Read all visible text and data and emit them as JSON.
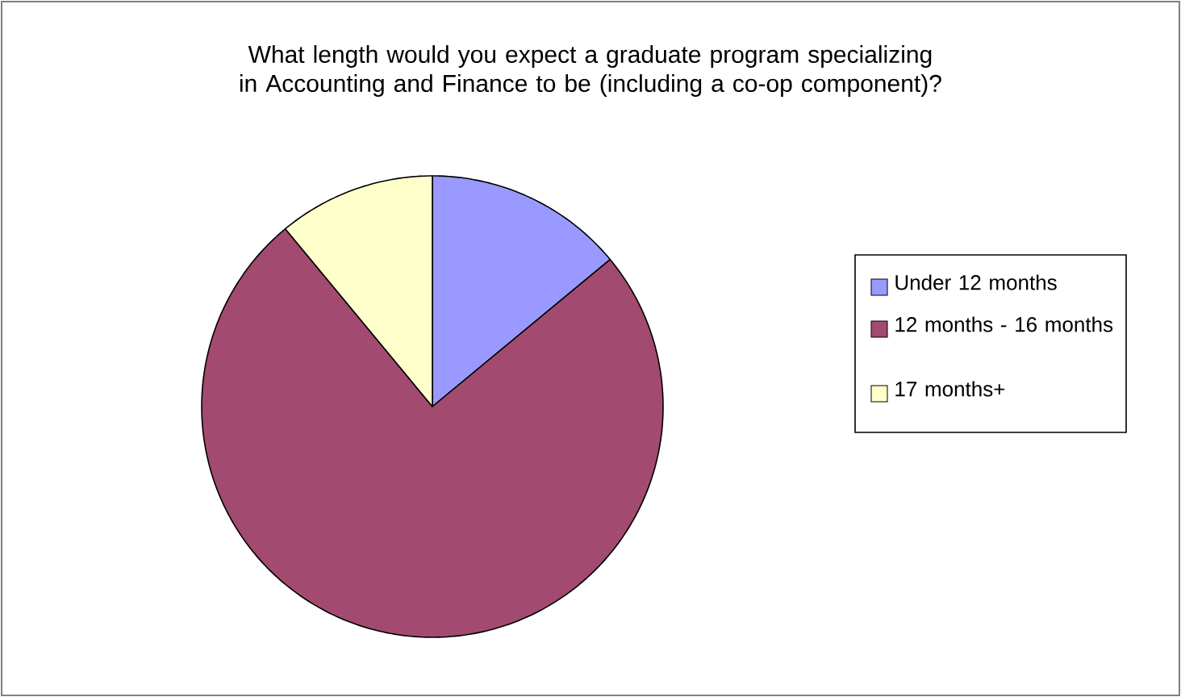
{
  "chart_data": {
    "type": "pie",
    "title": "What length would you expect a graduate program specializing in Accounting and Finance to be (including a co-op component)?",
    "categories": [
      "Under 12 months",
      "12 months - 16 months",
      "17 months+"
    ],
    "values": [
      14,
      75,
      11
    ],
    "colors": [
      "#9999ff",
      "#a34a70",
      "#ffffcc"
    ],
    "legend": "right"
  }
}
